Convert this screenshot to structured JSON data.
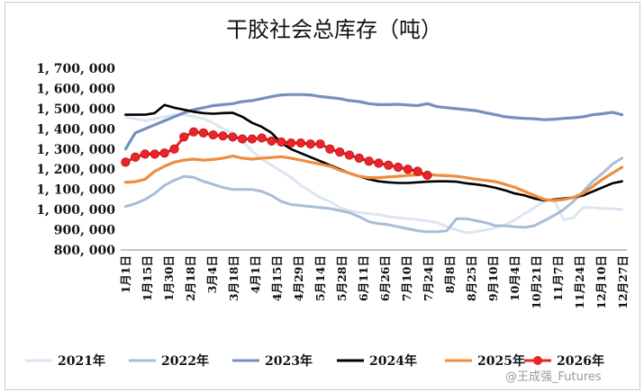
{
  "chart_data": {
    "type": "line",
    "title": "干胶社会总库存（吨）",
    "xlabel": "",
    "ylabel": "",
    "ylim": [
      800000,
      1700000
    ],
    "yticks": [
      "800, 000",
      "900, 000",
      "1, 000, 000",
      "1, 100, 000",
      "1, 200, 000",
      "1, 300, 000",
      "1, 400, 000",
      "1, 500, 000",
      "1, 600, 000",
      "1, 700, 000"
    ],
    "x_tick_labels": [
      "1月1日",
      "1月15日",
      "1月30日",
      "2月18日",
      "3月4日",
      "3月18日",
      "4月1日",
      "4月15日",
      "4月29日",
      "5月14日",
      "5月28日",
      "6月11日",
      "6月26日",
      "7月10日",
      "7月24日",
      "8月8日",
      "8月25日",
      "9月10日",
      "10月4日",
      "10月21日",
      "11月7日",
      "11月24日",
      "12月10日",
      "12月27日"
    ],
    "grid": false,
    "legend_position": "bottom",
    "series": [
      {
        "name": "2021年",
        "color": "#dce6f2",
        "values": [
          1460000,
          1450000,
          1440000,
          1450000,
          1460000,
          1470000,
          1470000,
          1460000,
          1450000,
          1430000,
          1400000,
          1380000,
          1340000,
          1290000,
          1250000,
          1220000,
          1190000,
          1160000,
          1120000,
          1090000,
          1060000,
          1040000,
          1010000,
          995000,
          985000,
          980000,
          975000,
          965000,
          960000,
          955000,
          950000,
          945000,
          935000,
          915000,
          900000,
          885000,
          890000,
          900000,
          910000,
          925000,
          950000,
          980000,
          1010000,
          1040000,
          1050000,
          950000,
          960000,
          1010000,
          1010000,
          1005000,
          1005000,
          1000000
        ]
      },
      {
        "name": "2022年",
        "color": "#a9bcd8",
        "values": [
          1015000,
          1030000,
          1050000,
          1080000,
          1120000,
          1145000,
          1165000,
          1160000,
          1140000,
          1125000,
          1110000,
          1100000,
          1100000,
          1100000,
          1090000,
          1070000,
          1040000,
          1025000,
          1020000,
          1015000,
          1010000,
          1005000,
          995000,
          985000,
          965000,
          940000,
          930000,
          925000,
          915000,
          905000,
          895000,
          890000,
          890000,
          895000,
          955000,
          955000,
          945000,
          935000,
          920000,
          920000,
          915000,
          912000,
          920000,
          945000,
          970000,
          1000000,
          1040000,
          1090000,
          1140000,
          1180000,
          1225000,
          1255000
        ]
      },
      {
        "name": "2023年",
        "color": "#7590bf",
        "values": [
          1300000,
          1380000,
          1400000,
          1420000,
          1440000,
          1460000,
          1480000,
          1495000,
          1505000,
          1515000,
          1520000,
          1525000,
          1535000,
          1540000,
          1550000,
          1560000,
          1568000,
          1570000,
          1570000,
          1568000,
          1560000,
          1555000,
          1550000,
          1540000,
          1535000,
          1525000,
          1520000,
          1520000,
          1522000,
          1518000,
          1515000,
          1525000,
          1510000,
          1505000,
          1500000,
          1495000,
          1490000,
          1480000,
          1470000,
          1460000,
          1455000,
          1452000,
          1450000,
          1445000,
          1448000,
          1452000,
          1455000,
          1460000,
          1470000,
          1475000,
          1482000,
          1470000
        ]
      },
      {
        "name": "2024年",
        "color": "#000000",
        "values": [
          1470000,
          1470000,
          1470000,
          1478000,
          1518000,
          1505000,
          1495000,
          1485000,
          1478000,
          1475000,
          1478000,
          1480000,
          1460000,
          1430000,
          1410000,
          1380000,
          1330000,
          1300000,
          1280000,
          1260000,
          1240000,
          1220000,
          1200000,
          1180000,
          1165000,
          1150000,
          1140000,
          1135000,
          1132000,
          1132000,
          1135000,
          1138000,
          1140000,
          1140000,
          1138000,
          1130000,
          1125000,
          1118000,
          1108000,
          1095000,
          1080000,
          1070000,
          1055000,
          1045000,
          1050000,
          1055000,
          1060000,
          1070000,
          1090000,
          1110000,
          1130000,
          1140000
        ]
      },
      {
        "name": "2025年",
        "color": "#ef8c3e",
        "values": [
          1135000,
          1138000,
          1150000,
          1190000,
          1215000,
          1235000,
          1245000,
          1250000,
          1245000,
          1248000,
          1255000,
          1265000,
          1255000,
          1250000,
          1255000,
          1258000,
          1262000,
          1255000,
          1245000,
          1235000,
          1225000,
          1215000,
          1195000,
          1180000,
          1165000,
          1158000,
          1158000,
          1162000,
          1165000,
          1170000,
          1172000,
          1175000,
          1170000,
          1168000,
          1165000,
          1158000,
          1150000,
          1145000,
          1138000,
          1125000,
          1110000,
          1090000,
          1070000,
          1050000,
          1045000,
          1050000,
          1060000,
          1080000,
          1115000,
          1150000,
          1180000,
          1210000
        ]
      },
      {
        "name": "2026年",
        "color": "#e8252a",
        "values": [
          1235000,
          1260000,
          1275000,
          1275000,
          1280000,
          1300000,
          1360000,
          1385000,
          1380000,
          1370000,
          1365000,
          1360000,
          1350000,
          1350000,
          1355000,
          1340000,
          1335000,
          1330000,
          1330000,
          1325000,
          1325000,
          1300000,
          1285000,
          1270000,
          1255000,
          1240000,
          1230000,
          1220000,
          1210000,
          1200000,
          1190000,
          1170000
        ]
      }
    ]
  },
  "watermark": "@王成强_Futures"
}
